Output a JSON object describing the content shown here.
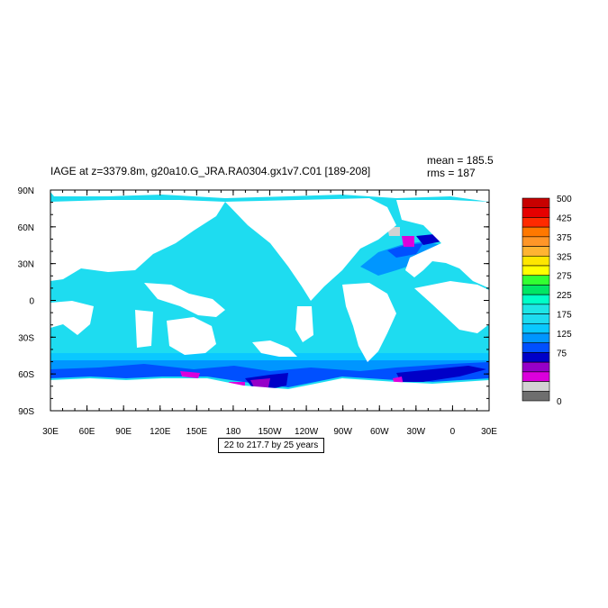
{
  "map": {
    "title": "IAGE at z=3379.8m, g20a10.G_JRA.RA0304.gx1v7.C01 [189-208]",
    "mean_label": "mean = 185.5",
    "rms_label": "rms = 187",
    "range_label": "22 to 217.7 by 25 years",
    "lon_labels": [
      "30E",
      "60E",
      "90E",
      "120E",
      "150E",
      "180",
      "150W",
      "120W",
      "90W",
      "60W",
      "30W",
      "0",
      "30E"
    ],
    "lat_labels": [
      "90N",
      "60N",
      "30N",
      "0",
      "30S",
      "60S",
      "90S"
    ]
  },
  "colorbar": {
    "labels": [
      "500",
      "425",
      "375",
      "325",
      "275",
      "225",
      "175",
      "125",
      "75",
      "0"
    ],
    "colors": [
      "#c80000",
      "#e60000",
      "#ff2a00",
      "#ff7800",
      "#ff9628",
      "#ffb432",
      "#ffe600",
      "#ffff00",
      "#32ff32",
      "#00e664",
      "#00ffc8",
      "#1ee6e6",
      "#1edcf0",
      "#0ac8ff",
      "#0096ff",
      "#0050ff",
      "#0000c8",
      "#9600c8",
      "#dc00dc",
      "#d2d2d2",
      "#6e6e6e"
    ]
  },
  "field_colors": {
    "land": "#ffffff",
    "dominant": "#1edcf0",
    "mid": "#0ac8ff",
    "light": "#0096ff",
    "deep": "#0050ff",
    "darkblue": "#0000c8",
    "purple": "#9600c8",
    "magenta": "#dc00dc",
    "gray": "#d2d2d2"
  }
}
